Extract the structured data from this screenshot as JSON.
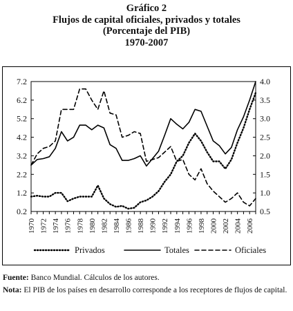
{
  "header": {
    "label": "Gráfico 2",
    "title": "Flujos de capital oficiales, privados y totales",
    "subtitle": "(Porcentaje del PIB)",
    "period": "1970-2007"
  },
  "chart_data": {
    "type": "line",
    "x_label": "",
    "left_axis": {
      "label": "",
      "ticks": [
        0.2,
        1.2,
        2.2,
        3.2,
        4.2,
        5.2,
        6.2,
        7.2
      ],
      "range": [
        0.2,
        7.2
      ]
    },
    "right_axis": {
      "label": "",
      "ticks": [
        "0.5",
        "1.0",
        "1.5",
        "2.0",
        "2.5",
        "3.0",
        "3.5",
        "4.0"
      ],
      "range": [
        0.5,
        4.0
      ]
    },
    "x_ticks": [
      "1970",
      "1972",
      "1974",
      "1976",
      "1978",
      "1980",
      "1982",
      "1984",
      "1986",
      "1988",
      "1990",
      "1992",
      "1994",
      "1996",
      "1998",
      "2000",
      "2002",
      "2004",
      "2006"
    ],
    "x": [
      1970,
      1971,
      1972,
      1973,
      1974,
      1975,
      1976,
      1977,
      1978,
      1979,
      1980,
      1981,
      1982,
      1983,
      1984,
      1985,
      1986,
      1987,
      1988,
      1989,
      1990,
      1991,
      1992,
      1993,
      1994,
      1995,
      1996,
      1997,
      1998,
      1999,
      2000,
      2001,
      2002,
      2003,
      2004,
      2005,
      2006,
      2007
    ],
    "series": [
      {
        "name": "Privados",
        "axis": "left",
        "style": "dotted",
        "values": [
          1.0,
          1.05,
          1.0,
          1.0,
          1.2,
          1.2,
          0.75,
          0.9,
          1.0,
          1.0,
          1.0,
          1.6,
          0.9,
          0.6,
          0.45,
          0.5,
          0.35,
          0.4,
          0.7,
          0.8,
          1.0,
          1.3,
          1.8,
          2.2,
          2.9,
          3.2,
          3.9,
          4.4,
          4.0,
          3.4,
          2.9,
          2.9,
          2.5,
          3.0,
          3.9,
          4.7,
          5.7,
          6.6
        ]
      },
      {
        "name": "Totales",
        "axis": "left",
        "style": "solid",
        "values": [
          2.7,
          3.0,
          3.05,
          3.15,
          3.6,
          4.5,
          4.0,
          4.2,
          4.85,
          4.85,
          4.6,
          4.85,
          4.7,
          3.8,
          3.6,
          2.95,
          2.95,
          3.05,
          3.2,
          2.65,
          3.05,
          3.45,
          4.3,
          5.2,
          4.9,
          4.65,
          5.0,
          5.7,
          5.6,
          4.8,
          4.0,
          3.75,
          3.3,
          3.65,
          4.6,
          5.3,
          6.2,
          7.2
        ]
      },
      {
        "name": "Oficiales",
        "axis": "right",
        "style": "dashed",
        "values": [
          1.75,
          2.05,
          2.2,
          2.25,
          2.4,
          3.25,
          3.25,
          3.25,
          3.8,
          3.8,
          3.5,
          3.25,
          3.75,
          3.15,
          3.1,
          2.5,
          2.55,
          2.65,
          2.6,
          1.85,
          1.9,
          1.95,
          2.1,
          2.25,
          1.85,
          1.9,
          1.5,
          1.35,
          1.65,
          1.25,
          1.05,
          0.9,
          0.75,
          0.85,
          1.0,
          0.75,
          0.65,
          0.85
        ]
      }
    ],
    "legend": {
      "placement": "bottom",
      "items": [
        "Privados",
        "Totales",
        "Oficiales"
      ]
    },
    "grid": false
  },
  "notes": {
    "source_label": "Fuente:",
    "source_text": " Banco Mundial. Cálculos de los autores.",
    "note_label": "Nota:",
    "note_text": " El PIB de los países en desarrollo corresponde a los receptores de flujos de capital."
  }
}
